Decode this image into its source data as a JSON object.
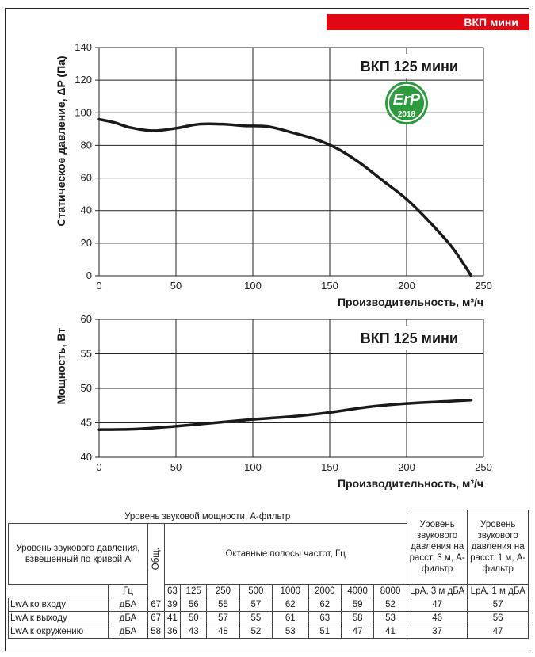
{
  "badge": "ВКП мини",
  "chart_data": [
    {
      "type": "line",
      "title": "ВКП 125 мини",
      "xlabel": "Производительность, м³/ч",
      "ylabel": "Статическое давление, ΔP (Па)",
      "xlim": [
        0,
        250
      ],
      "ylim": [
        0,
        140
      ],
      "xticks": [
        0,
        50,
        100,
        150,
        200,
        250
      ],
      "yticks": [
        0,
        20,
        40,
        60,
        80,
        100,
        120,
        140
      ],
      "grid": true,
      "series": [
        {
          "x": [
            0,
            10,
            20,
            35,
            50,
            65,
            80,
            95,
            110,
            125,
            140,
            155,
            170,
            185,
            200,
            215,
            230,
            242
          ],
          "y": [
            96,
            94,
            91,
            89,
            90.5,
            93,
            93,
            92,
            91.5,
            88,
            84,
            78,
            69,
            58,
            47,
            33,
            17,
            0
          ]
        }
      ]
    },
    {
      "type": "line",
      "title": "ВКП 125 мини",
      "xlabel": "Производительность, м³/ч",
      "ylabel": "Мощность, Вт",
      "xlim": [
        0,
        250
      ],
      "ylim": [
        40,
        60
      ],
      "xticks": [
        0,
        50,
        100,
        150,
        200,
        250
      ],
      "yticks": [
        40,
        45,
        50,
        55,
        60
      ],
      "grid": true,
      "series": [
        {
          "x": [
            0,
            25,
            50,
            75,
            100,
            125,
            150,
            175,
            200,
            225,
            242
          ],
          "y": [
            44.0,
            44.1,
            44.5,
            45.0,
            45.5,
            45.9,
            46.5,
            47.3,
            47.8,
            48.1,
            48.3
          ]
        }
      ]
    }
  ],
  "logo": {
    "text": "ErP",
    "year": "2018"
  },
  "table": {
    "title": "Уровень звуковой мощности, А-фильтр",
    "col1": "Уровень звукового давления, взвешенный по кривой А",
    "hz_label": "Гц",
    "total_label": "Общ.",
    "octave_label": "Октавные полосы частот, Гц",
    "freqs": [
      "63",
      "125",
      "250",
      "500",
      "1000",
      "2000",
      "4000",
      "8000"
    ],
    "lvl3m_head": "Уровень звукового давления на расст. 3 м, А-фильтр",
    "lvl1m_head": "Уровень звукового давления на расст. 1 м, А-фильтр",
    "lpa3_label": "LpA, 3 м дБА",
    "lpa1_label": "LpA, 1 м дБА",
    "rows": [
      {
        "label": "LwA ко входу",
        "unit": "дБА",
        "total": "67",
        "values": [
          "39",
          "56",
          "55",
          "57",
          "62",
          "62",
          "59",
          "52"
        ],
        "lpa3": "47",
        "lpa1": "57"
      },
      {
        "label": "LwA к выходу",
        "unit": "дБА",
        "total": "67",
        "values": [
          "41",
          "50",
          "57",
          "55",
          "61",
          "63",
          "58",
          "53"
        ],
        "lpa3": "46",
        "lpa1": "56"
      },
      {
        "label": "LwA к окружению",
        "unit": "дБА",
        "total": "58",
        "values": [
          "36",
          "43",
          "48",
          "52",
          "53",
          "51",
          "47",
          "41"
        ],
        "lpa3": "37",
        "lpa1": "47"
      }
    ]
  },
  "colors": {
    "accent": "#e30613",
    "logo_green": "#2e9a3e",
    "curve": "#1a1a1a"
  }
}
